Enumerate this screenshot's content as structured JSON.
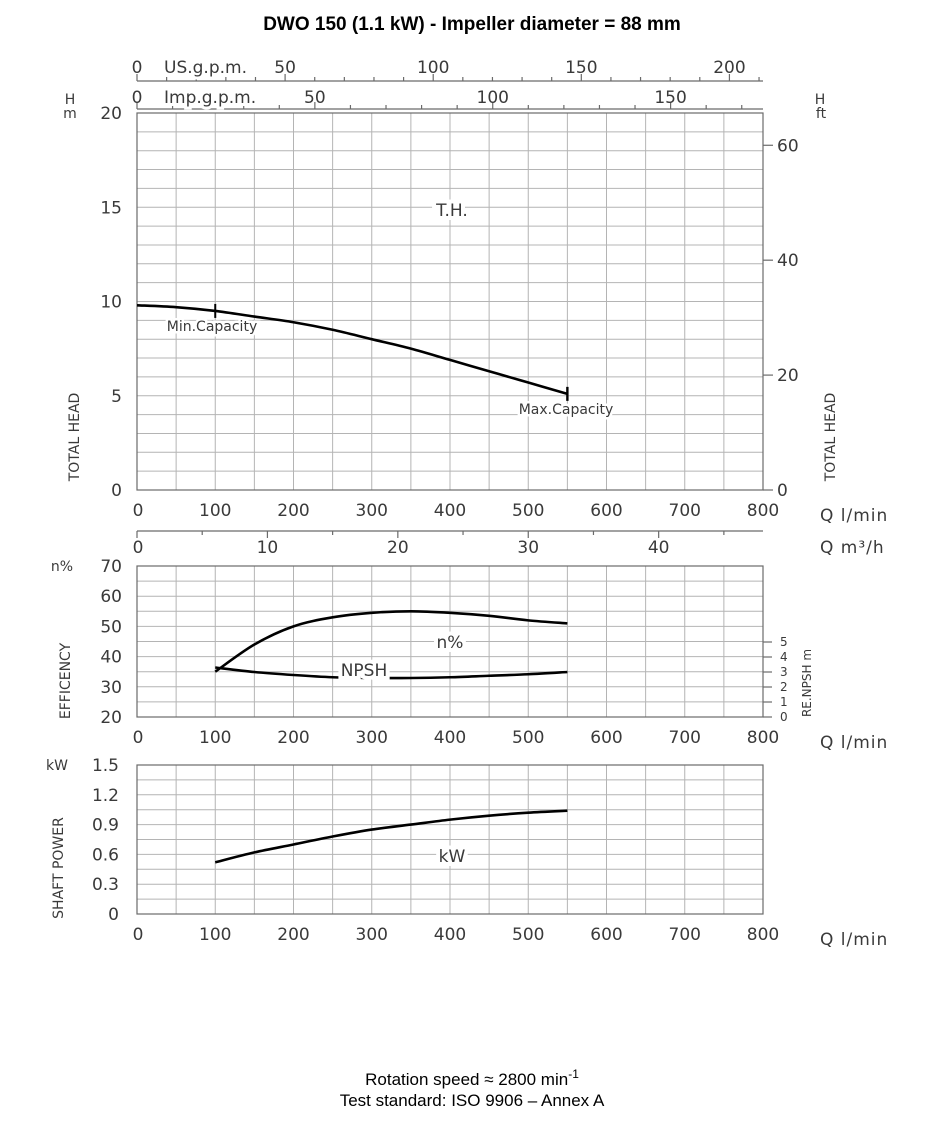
{
  "title": "DWO 150 (1.1 kW) - Impeller diameter = 88 mm",
  "footer": {
    "rotation_text": "Rotation speed ≈ 2800 min",
    "rotation_sup": "-1",
    "standard": "Test standard: ISO 9906 – Annex A"
  },
  "chart_data": [
    {
      "type": "line",
      "name": "head",
      "x_unit_label": "Q l/min",
      "y_left_unit": "m",
      "y_left_letter": "H",
      "y_right_unit": "ft",
      "y_right_letter": "H",
      "y_left_axis_label": "TOTAL HEAD",
      "y_right_axis_label": "TOTAL HEAD",
      "xlim": [
        0,
        800
      ],
      "ylim": [
        0,
        20
      ],
      "x_ticks": [
        0,
        100,
        200,
        300,
        400,
        500,
        600,
        700,
        800
      ],
      "y_ticks": [
        0,
        5,
        10,
        15,
        20
      ],
      "y_right_ticks": [
        0,
        20,
        40,
        60
      ],
      "top_axes": [
        {
          "label": "US.g.p.m.",
          "ticks": [
            0,
            50,
            100,
            150,
            200
          ]
        },
        {
          "label": "Imp.g.p.m.",
          "ticks": [
            0,
            50,
            100,
            150
          ]
        }
      ],
      "bottom_axis2": {
        "label": "Q m³/h",
        "ticks": [
          0,
          10,
          20,
          30,
          40
        ]
      },
      "series": [
        {
          "label": "T.H.",
          "x": [
            0,
            50,
            100,
            150,
            200,
            250,
            300,
            350,
            400,
            450,
            500,
            550
          ],
          "y": [
            9.8,
            9.7,
            9.5,
            9.2,
            8.9,
            8.5,
            8.0,
            7.5,
            6.9,
            6.3,
            5.7,
            5.1
          ]
        }
      ],
      "annotations": [
        "Min.Capacity",
        "Max.Capacity"
      ],
      "min_capacity": {
        "x": 100,
        "y": 9.5
      },
      "max_capacity": {
        "x": 550,
        "y": 5.1
      }
    },
    {
      "type": "line",
      "name": "efficiency",
      "x_unit_label": "Q l/min",
      "y_left_unit": "n%",
      "y_left_axis_label": "EFFICENCY",
      "y_right_axis_label": "RE.NPSH m",
      "xlim": [
        0,
        800
      ],
      "ylim": [
        20,
        70
      ],
      "y_right_lim": [
        0,
        5
      ],
      "x_ticks": [
        0,
        100,
        200,
        300,
        400,
        500,
        600,
        700,
        800
      ],
      "y_ticks": [
        20,
        30,
        40,
        50,
        60,
        70
      ],
      "y_right_ticks": [
        0,
        1,
        2,
        3,
        4,
        5
      ],
      "series": [
        {
          "label": "n%",
          "x": [
            100,
            150,
            200,
            250,
            300,
            350,
            400,
            450,
            500,
            550
          ],
          "y": [
            35,
            44,
            50,
            53,
            54.5,
            55,
            54.5,
            53.5,
            52,
            51
          ]
        },
        {
          "label": "NPSH",
          "x": [
            100,
            150,
            200,
            250,
            300,
            350,
            400,
            450,
            500,
            550
          ],
          "y": [
            3.3,
            3.0,
            2.8,
            2.65,
            2.6,
            2.6,
            2.65,
            2.75,
            2.85,
            3.0
          ]
        }
      ]
    },
    {
      "type": "line",
      "name": "power",
      "x_unit_label": "Q l/min",
      "y_left_unit": "kW",
      "y_left_axis_label": "SHAFT POWER",
      "xlim": [
        0,
        800
      ],
      "ylim": [
        0,
        1.5
      ],
      "x_ticks": [
        0,
        100,
        200,
        300,
        400,
        500,
        600,
        700,
        800
      ],
      "y_ticks": [
        "0",
        "0.3",
        "0.6",
        "0.9",
        "1.2",
        "1.5"
      ],
      "series": [
        {
          "label": "kW",
          "x": [
            100,
            150,
            200,
            250,
            300,
            350,
            400,
            450,
            500,
            550
          ],
          "y": [
            0.52,
            0.62,
            0.7,
            0.78,
            0.85,
            0.9,
            0.95,
            0.99,
            1.02,
            1.04
          ]
        }
      ]
    }
  ]
}
